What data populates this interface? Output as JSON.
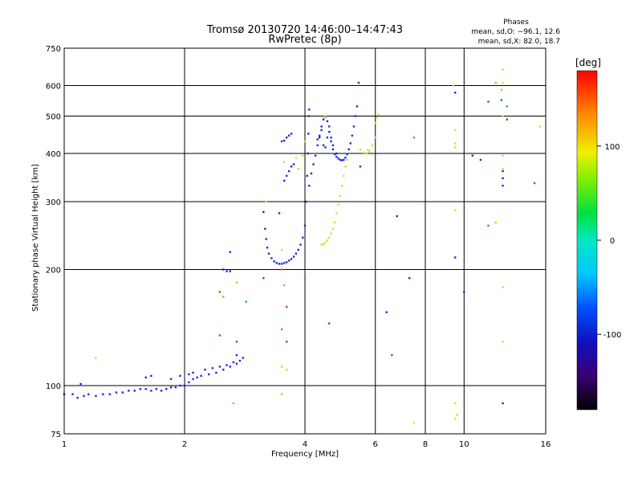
{
  "chart_data": {
    "type": "scatter",
    "title": "Tromsø 20130720 14:46:00–14:47:43",
    "subtitle": "RwPretec (8p)",
    "xlabel": "Frequency [MHz]",
    "ylabel": "Stationary phase Virtual Height [km]",
    "x_scale": "log",
    "y_scale": "log",
    "xlim": [
      1,
      16
    ],
    "ylim": [
      75,
      750
    ],
    "x_ticks": [
      1,
      2,
      4,
      6,
      8,
      10,
      16
    ],
    "y_ticks": [
      75,
      100,
      200,
      300,
      400,
      500,
      600,
      750
    ],
    "grid": true,
    "phases_note": {
      "title": "Phases",
      "line_o": "mean, sd,O: −96.1, 12.6",
      "line_x": "mean, sd,X:  82.0, 18.7"
    },
    "colorbar": {
      "label": "[deg]",
      "min": -180,
      "max": 180,
      "ticks": [
        100,
        0,
        -100
      ]
    },
    "series": [
      {
        "mode": "O",
        "points": [
          [
            1.0,
            95
          ],
          [
            1.05,
            95
          ],
          [
            1.08,
            93
          ],
          [
            1.12,
            94
          ],
          [
            1.15,
            95
          ],
          [
            1.2,
            94
          ],
          [
            1.25,
            95
          ],
          [
            1.3,
            95
          ],
          [
            1.35,
            96
          ],
          [
            1.4,
            96
          ],
          [
            1.45,
            97
          ],
          [
            1.5,
            97
          ],
          [
            1.55,
            98
          ],
          [
            1.6,
            98
          ],
          [
            1.65,
            97
          ],
          [
            1.7,
            98
          ],
          [
            1.75,
            97
          ],
          [
            1.8,
            98
          ],
          [
            1.85,
            99
          ],
          [
            1.9,
            99
          ],
          [
            1.95,
            100
          ],
          [
            2.0,
            100
          ],
          [
            2.05,
            102
          ],
          [
            2.1,
            104
          ],
          [
            2.15,
            105
          ],
          [
            2.2,
            106
          ],
          [
            2.3,
            107
          ],
          [
            2.4,
            108
          ],
          [
            2.5,
            110
          ],
          [
            2.6,
            112
          ],
          [
            2.7,
            114
          ],
          [
            2.75,
            116
          ],
          [
            2.8,
            118
          ],
          [
            1.6,
            105
          ],
          [
            1.65,
            106
          ],
          [
            1.85,
            104
          ],
          [
            1.95,
            106
          ],
          [
            2.05,
            107
          ],
          [
            2.1,
            108
          ],
          [
            2.25,
            110
          ],
          [
            2.35,
            111
          ],
          [
            2.45,
            112
          ],
          [
            2.55,
            113
          ],
          [
            2.65,
            115
          ],
          [
            2.7,
            120
          ],
          [
            2.5,
            200
          ],
          [
            2.55,
            198
          ],
          [
            2.6,
            198
          ],
          [
            2.6,
            222
          ],
          [
            1.1,
            101
          ],
          [
            3.15,
            282
          ],
          [
            3.18,
            255
          ],
          [
            3.2,
            240
          ],
          [
            3.22,
            228
          ],
          [
            3.25,
            220
          ],
          [
            3.3,
            214
          ],
          [
            3.35,
            210
          ],
          [
            3.4,
            208
          ],
          [
            3.45,
            207
          ],
          [
            3.5,
            207
          ],
          [
            3.55,
            208
          ],
          [
            3.6,
            209
          ],
          [
            3.65,
            211
          ],
          [
            3.7,
            213
          ],
          [
            3.75,
            216
          ],
          [
            3.8,
            220
          ],
          [
            3.85,
            225
          ],
          [
            3.9,
            232
          ],
          [
            3.95,
            242
          ],
          [
            4.0,
            260
          ],
          [
            4.03,
            300
          ],
          [
            4.05,
            350
          ],
          [
            4.07,
            400
          ],
          [
            4.08,
            450
          ],
          [
            4.09,
            500
          ],
          [
            4.1,
            520
          ],
          [
            3.45,
            280
          ],
          [
            3.55,
            340
          ],
          [
            3.6,
            350
          ],
          [
            3.65,
            360
          ],
          [
            3.7,
            370
          ],
          [
            3.75,
            375
          ],
          [
            3.5,
            430
          ],
          [
            3.55,
            432
          ],
          [
            3.6,
            440
          ],
          [
            3.65,
            445
          ],
          [
            3.7,
            450
          ],
          [
            4.1,
            330
          ],
          [
            4.15,
            355
          ],
          [
            4.2,
            375
          ],
          [
            4.25,
            395
          ],
          [
            4.3,
            420
          ],
          [
            4.35,
            445
          ],
          [
            4.4,
            470
          ],
          [
            4.45,
            490
          ],
          [
            4.5,
            498
          ],
          [
            4.55,
            485
          ],
          [
            4.6,
            455
          ],
          [
            4.65,
            430
          ],
          [
            4.7,
            410
          ],
          [
            4.75,
            398
          ],
          [
            4.8,
            392
          ],
          [
            4.85,
            388
          ],
          [
            4.9,
            385
          ],
          [
            4.95,
            384
          ],
          [
            5.0,
            385
          ],
          [
            5.05,
            390
          ],
          [
            5.1,
            398
          ],
          [
            5.15,
            410
          ],
          [
            5.2,
            425
          ],
          [
            5.25,
            445
          ],
          [
            5.3,
            470
          ],
          [
            5.35,
            500
          ],
          [
            5.4,
            530
          ],
          [
            4.3,
            435
          ],
          [
            4.35,
            440
          ],
          [
            4.4,
            460
          ],
          [
            4.45,
            420
          ],
          [
            4.5,
            415
          ],
          [
            4.55,
            440
          ],
          [
            4.6,
            470
          ],
          [
            4.65,
            440
          ],
          [
            4.7,
            420
          ],
          [
            4.8,
            400
          ],
          [
            5.45,
            610
          ],
          [
            5.5,
            370
          ],
          [
            9.5,
            575
          ],
          [
            9.5,
            215
          ],
          [
            10.0,
            175
          ],
          [
            12.5,
            345
          ],
          [
            12.5,
            360
          ],
          [
            12.5,
            330
          ],
          [
            10.5,
            395
          ],
          [
            11.0,
            385
          ],
          [
            7.3,
            190
          ],
          [
            6.8,
            275
          ],
          [
            6.4,
            155
          ],
          [
            12.5,
            90
          ]
        ],
        "phase": -110
      },
      {
        "mode": "X",
        "points": [
          [
            4.4,
            232
          ],
          [
            4.45,
            233
          ],
          [
            4.5,
            235
          ],
          [
            4.55,
            238
          ],
          [
            4.6,
            242
          ],
          [
            4.65,
            248
          ],
          [
            4.7,
            255
          ],
          [
            4.75,
            265
          ],
          [
            4.8,
            280
          ],
          [
            4.85,
            295
          ],
          [
            4.9,
            310
          ],
          [
            4.95,
            330
          ],
          [
            5.0,
            350
          ],
          [
            5.05,
            370
          ],
          [
            5.1,
            385
          ],
          [
            4.5,
            500
          ],
          [
            5.5,
            410
          ],
          [
            5.6,
            402
          ],
          [
            5.7,
            400
          ],
          [
            5.75,
            408
          ],
          [
            5.8,
            405
          ],
          [
            5.9,
            420
          ],
          [
            6.0,
            480
          ],
          [
            6.05,
            495
          ],
          [
            6.1,
            505
          ],
          [
            6.0,
            440
          ],
          [
            3.95,
            395
          ],
          [
            4.0,
            430
          ],
          [
            3.2,
            300
          ],
          [
            3.55,
            380
          ],
          [
            3.8,
            390
          ],
          [
            3.85,
            365
          ],
          [
            3.5,
            225
          ],
          [
            9.5,
            460
          ],
          [
            9.5,
            425
          ],
          [
            9.5,
            415
          ],
          [
            12.5,
            365
          ],
          [
            12.5,
            395
          ],
          [
            12.5,
            500
          ],
          [
            12.5,
            180
          ],
          [
            12.5,
            130
          ],
          [
            9.5,
            285
          ],
          [
            9.5,
            90
          ],
          [
            9.5,
            82
          ],
          [
            12.5,
            660
          ],
          [
            12.5,
            610
          ],
          [
            9.4,
            600
          ],
          [
            7.5,
            80
          ],
          [
            9.6,
            84
          ],
          [
            15.5,
            470
          ],
          [
            1.2,
            118
          ],
          [
            3.5,
            112
          ],
          [
            3.6,
            110
          ]
        ],
        "phase": 82
      },
      {
        "mode": "other",
        "points": [
          [
            2.5,
            170
          ],
          [
            2.45,
            135
          ],
          [
            2.7,
            130
          ],
          [
            2.7,
            185
          ],
          [
            2.85,
            165
          ],
          [
            3.15,
            190
          ],
          [
            3.5,
            200
          ],
          [
            3.55,
            182
          ],
          [
            3.6,
            160
          ],
          [
            3.6,
            130
          ],
          [
            3.5,
            95
          ],
          [
            4.0,
            190
          ],
          [
            6.6,
            120
          ],
          [
            7.5,
            440
          ],
          [
            12.0,
            610
          ],
          [
            15.0,
            335
          ],
          [
            11.5,
            545
          ],
          [
            12.0,
            265
          ],
          [
            11.5,
            260
          ],
          [
            4.6,
            145
          ],
          [
            3.5,
            140
          ],
          [
            2.65,
            90
          ],
          [
            2.45,
            175
          ],
          [
            12.4,
            550
          ],
          [
            12.4,
            585
          ],
          [
            12.8,
            530
          ],
          [
            12.8,
            490
          ]
        ],
        "phase": -20
      }
    ]
  }
}
